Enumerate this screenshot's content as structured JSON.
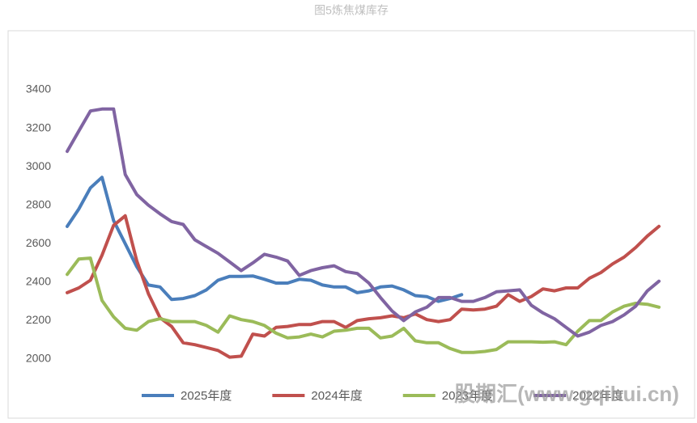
{
  "chart_data": {
    "type": "line",
    "title": "图5炼焦煤库存",
    "watermark": "股期汇(www.gqihui.cn)",
    "categories": [
      null,
      null,
      null,
      null,
      null,
      null,
      null,
      null,
      null,
      null,
      null,
      null,
      null,
      null,
      null,
      null,
      null,
      null,
      null,
      null,
      null,
      null,
      null,
      null,
      null,
      null,
      null,
      null,
      null,
      null,
      null,
      null,
      null,
      null,
      null,
      null,
      null,
      null,
      null,
      null,
      null,
      null,
      null,
      null,
      null,
      null,
      null,
      null,
      null,
      null,
      null,
      null
    ],
    "ylim": [
      2000,
      3400
    ],
    "yticks": [
      2000,
      2200,
      2400,
      2600,
      2800,
      3000,
      3200,
      3400
    ],
    "grid": false,
    "legend": "bottom",
    "series": [
      {
        "name": "2025年度",
        "color": "#4a7ebb",
        "values": [
          2690,
          2780,
          2890,
          2945,
          2720,
          2600,
          2480,
          2385,
          2375,
          2310,
          2315,
          2330,
          2360,
          2410,
          2430,
          2430,
          2432,
          2415,
          2395,
          2395,
          2415,
          2410,
          2385,
          2375,
          2375,
          2345,
          2355,
          2375,
          2380,
          2360,
          2330,
          2325,
          2300,
          2315,
          2335,
          null,
          null,
          null,
          null,
          null,
          null,
          null,
          null,
          null,
          null,
          null,
          null,
          null,
          null,
          null,
          null,
          null
        ]
      },
      {
        "name": "2024年度",
        "color": "#c0504d",
        "values": [
          2345,
          2370,
          2410,
          2540,
          2695,
          2745,
          2510,
          2340,
          2215,
          2170,
          2085,
          2075,
          2060,
          2045,
          2010,
          2015,
          2130,
          2120,
          2165,
          2170,
          2180,
          2180,
          2195,
          2195,
          2165,
          2200,
          2210,
          2215,
          2225,
          2215,
          2235,
          2205,
          2195,
          2205,
          2260,
          2255,
          2260,
          2275,
          2335,
          2300,
          2325,
          2365,
          2355,
          2370,
          2370,
          2420,
          2450,
          2495,
          2530,
          2580,
          2640,
          2690
        ]
      },
      {
        "name": "2023年度",
        "color": "#9bbb59",
        "values": [
          2440,
          2520,
          2525,
          2305,
          2220,
          2160,
          2150,
          2195,
          2210,
          2195,
          2195,
          2195,
          2175,
          2140,
          2225,
          2205,
          2195,
          2175,
          2135,
          2110,
          2115,
          2130,
          2115,
          2145,
          2150,
          2160,
          2160,
          2110,
          2120,
          2160,
          2095,
          2085,
          2085,
          2055,
          2035,
          2035,
          2040,
          2050,
          2090,
          2090,
          2090,
          2088,
          2090,
          2075,
          2145,
          2200,
          2200,
          2245,
          2275,
          2290,
          2285,
          2270
        ]
      },
      {
        "name": "2022年度",
        "color": "#8064a2",
        "values": [
          3080,
          3185,
          3290,
          3300,
          3300,
          2960,
          2855,
          2800,
          2755,
          2715,
          2700,
          2620,
          2585,
          2550,
          2505,
          2460,
          2500,
          2545,
          2530,
          2510,
          2435,
          2460,
          2475,
          2485,
          2455,
          2445,
          2395,
          2320,
          2250,
          2200,
          2245,
          2270,
          2320,
          2320,
          2300,
          2300,
          2320,
          2350,
          2355,
          2360,
          2280,
          2240,
          2210,
          2165,
          2120,
          2140,
          2175,
          2195,
          2230,
          2275,
          2355,
          2405
        ]
      }
    ]
  }
}
